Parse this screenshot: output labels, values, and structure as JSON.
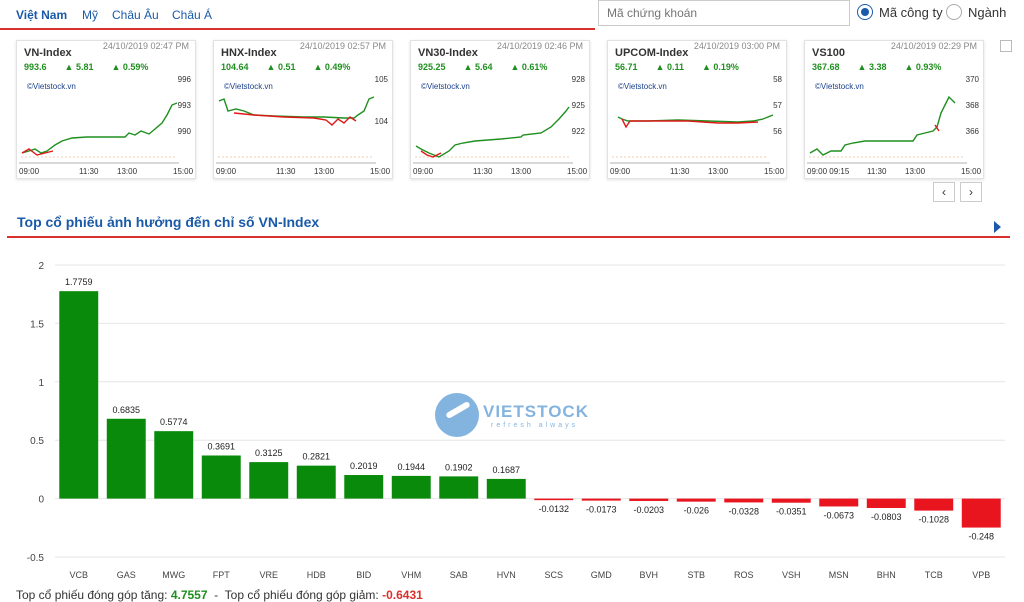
{
  "nav": {
    "tabs": [
      "Việt Nam",
      "Mỹ",
      "Châu Âu",
      "Châu Á"
    ],
    "search_placeholder": "Mã chứng khoán",
    "radio_company": "Mã công ty",
    "radio_industry": "Ngành"
  },
  "cards": [
    {
      "name": "VN-Index",
      "time": "24/10/2019 02:47 PM",
      "price": "993.6",
      "change": "▲ 5.81",
      "pct": "▲ 0.59%",
      "source": "©Vietstock.vn",
      "yticks": [
        "996",
        "993",
        "990"
      ],
      "xticks": [
        "09:00",
        "11:30",
        "13:00",
        "15:00"
      ]
    },
    {
      "name": "HNX-Index",
      "time": "24/10/2019 02:57 PM",
      "price": "104.64",
      "change": "▲ 0.51",
      "pct": "▲ 0.49%",
      "source": "©Vietstock.vn",
      "yticks": [
        "105",
        "104"
      ],
      "xticks": [
        "09:00",
        "11:30",
        "13:00",
        "15:00"
      ]
    },
    {
      "name": "VN30-Index",
      "time": "24/10/2019 02:46 PM",
      "price": "925.25",
      "change": "▲ 5.64",
      "pct": "▲ 0.61%",
      "source": "©Vietstock.vn",
      "yticks": [
        "928",
        "925",
        "922"
      ],
      "xticks": [
        "09:00",
        "11:30",
        "13:00",
        "15:00"
      ]
    },
    {
      "name": "UPCOM-Index",
      "time": "24/10/2019 03:00 PM",
      "price": "56.71",
      "change": "▲ 0.11",
      "pct": "▲ 0.19%",
      "source": "©Vietstock.vn",
      "yticks": [
        "58",
        "57",
        "56"
      ],
      "xticks": [
        "09:00",
        "11:30",
        "13:00",
        "15:00"
      ]
    },
    {
      "name": "VS100",
      "time": "24/10/2019 02:29 PM",
      "price": "367.68",
      "change": "▲ 3.38",
      "pct": "▲ 0.93%",
      "source": "©Vietstock.vn",
      "yticks": [
        "370",
        "368",
        "366"
      ],
      "xticks": [
        "09:00 09:15",
        "11:30",
        "13:00",
        "15:00"
      ]
    }
  ],
  "pager": {
    "prev": "‹",
    "next": "›"
  },
  "section_title": "Top cổ phiếu ảnh hưởng đến chỉ số VN-Index",
  "watermark": {
    "brand": "VIETSTOCK",
    "tagline": "refresh always"
  },
  "chart_data": {
    "type": "bar",
    "categories": [
      "VCB",
      "GAS",
      "MWG",
      "FPT",
      "VRE",
      "HDB",
      "BID",
      "VHM",
      "SAB",
      "HVN",
      "SCS",
      "GMD",
      "BVH",
      "STB",
      "ROS",
      "VSH",
      "MSN",
      "BHN",
      "TCB",
      "VPB"
    ],
    "values": [
      1.7759,
      0.6835,
      0.5774,
      0.3691,
      0.3125,
      0.2821,
      0.2019,
      0.1944,
      0.1902,
      0.1687,
      -0.0132,
      -0.0173,
      -0.0203,
      -0.026,
      -0.0328,
      -0.0351,
      -0.0673,
      -0.0803,
      -0.1028,
      -0.248
    ],
    "value_labels": [
      "1.7759",
      "0.6835",
      "0.5774",
      "0.3691",
      "0.3125",
      "0.2821",
      "0.2019",
      "0.1944",
      "0.1902",
      "0.1687",
      "-0.0132",
      "-0.0173",
      "-0.0203",
      "-0.026",
      "-0.0328",
      "-0.0351",
      "-0.0673",
      "-0.0803",
      "-0.1028",
      "-0.248"
    ],
    "yticks": [
      "2",
      "1.5",
      "1",
      "0.5",
      "0",
      "-0.5"
    ],
    "ylim": [
      -0.5,
      2
    ],
    "colors": {
      "positive": "#0a8a0a",
      "negative": "#e8141e"
    },
    "grid": true
  },
  "footer": {
    "pos_label": "Top cổ phiếu đóng góp tăng:",
    "pos_value": "4.7557",
    "neg_label": "Top cổ phiếu đóng góp giảm:",
    "neg_value": "-0.6431"
  }
}
